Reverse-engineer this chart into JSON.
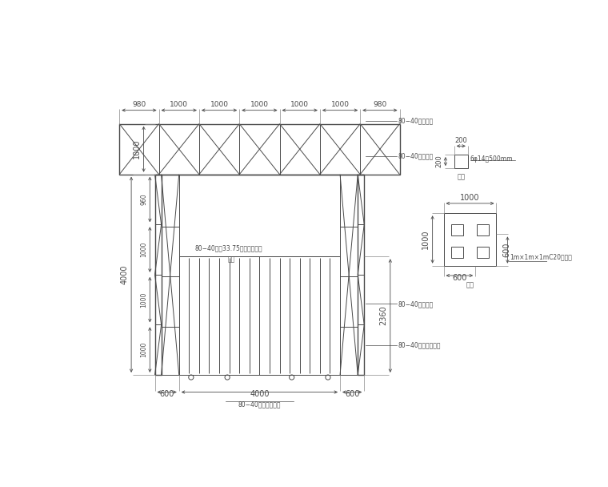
{
  "bg_color": "#ffffff",
  "line_color": "#4a4a4a",
  "lw": 0.7,
  "lw_thick": 1.0,
  "fig_width": 7.6,
  "fig_height": 6.08,
  "labels": {
    "top_dims": [
      "980",
      "1000",
      "1000",
      "1000",
      "1000",
      "1000",
      "980"
    ],
    "left_col_dims": [
      "1000",
      "1000",
      "1000",
      "960"
    ],
    "left_total": "4000",
    "truss_h_label": "1000",
    "bottom_dims": [
      "600",
      "4000",
      "600"
    ],
    "right_dim": "2360",
    "right_labels": [
      "80−40方锂支擐",
      "80−40方锂斜橄",
      "80−40方锂立深",
      "80−40方锂水平斜橄"
    ],
    "bottom_label": "80−40方锂水平支擐",
    "gate_label_line1": "80−40方锢33.75间围焚接大门",
    "gate_label_line2": "门制"
  },
  "detail_embed": {
    "label_size": "200",
    "bolt_label": "6φ14长500mm",
    "embed_name": "埋件"
  },
  "detail_base": {
    "dim1": "1000",
    "dim2": "1000",
    "dim3": "600",
    "dim4": "600",
    "concrete_label": "1m×1m×1mC20汿凝土",
    "base_name": "基础"
  }
}
